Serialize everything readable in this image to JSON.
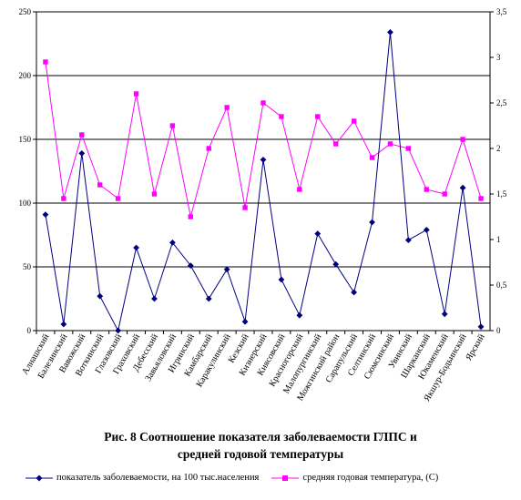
{
  "caption": {
    "line1": "Рис. 8   Соотношение показателя заболеваемости ГЛПС и",
    "line2": "средней годовой температуры"
  },
  "colors": {
    "series1": "#000080",
    "series2": "#ff00ff",
    "grid": "#000000"
  },
  "chart_data": {
    "type": "line",
    "categories": [
      "Алнашский",
      "Балезинский",
      "Вавожский",
      "Воткинский",
      "Глазовский",
      "Граховский",
      "Дебесский",
      "Завьяловский",
      "Игринский",
      "Камбарский",
      "Каракулинский",
      "Кезский",
      "Кизнерский",
      "Киясовский",
      "Красногорский",
      "Малопургинский",
      "Можгинский район",
      "Сарапульский",
      "Селтинский",
      "Сюмсинский",
      "Увинский",
      "Шарканский",
      "Юкаменский",
      "Якшур-Бодьинский",
      "Ярский"
    ],
    "series": [
      {
        "name": "показатель заболеваемости, на 100 тыс.населения",
        "axis": "left",
        "marker": "diamond",
        "values": [
          91,
          5,
          139,
          27,
          0,
          65,
          25,
          69,
          51,
          25,
          48,
          7,
          134,
          40,
          12,
          76,
          52,
          30,
          85,
          234,
          71,
          79,
          13,
          112,
          3
        ]
      },
      {
        "name": "средняя годовая температура, (С)",
        "axis": "right",
        "marker": "square",
        "values": [
          2.95,
          1.45,
          2.15,
          1.6,
          1.45,
          2.6,
          1.5,
          2.25,
          1.25,
          2.0,
          2.45,
          1.35,
          2.5,
          2.35,
          1.55,
          2.35,
          2.05,
          2.3,
          1.9,
          2.05,
          2.0,
          1.55,
          1.5,
          2.1,
          1.45
        ]
      }
    ],
    "y_left": {
      "min": 0,
      "max": 250,
      "ticks": [
        "0",
        "50",
        "100",
        "150",
        "200",
        "250"
      ]
    },
    "y_right": {
      "min": 0,
      "max": 3.5,
      "ticks": [
        "0",
        "0,5",
        "1",
        "1,5",
        "2",
        "2,5",
        "3",
        "3,5"
      ]
    },
    "grid": true,
    "legend_position": "bottom"
  }
}
